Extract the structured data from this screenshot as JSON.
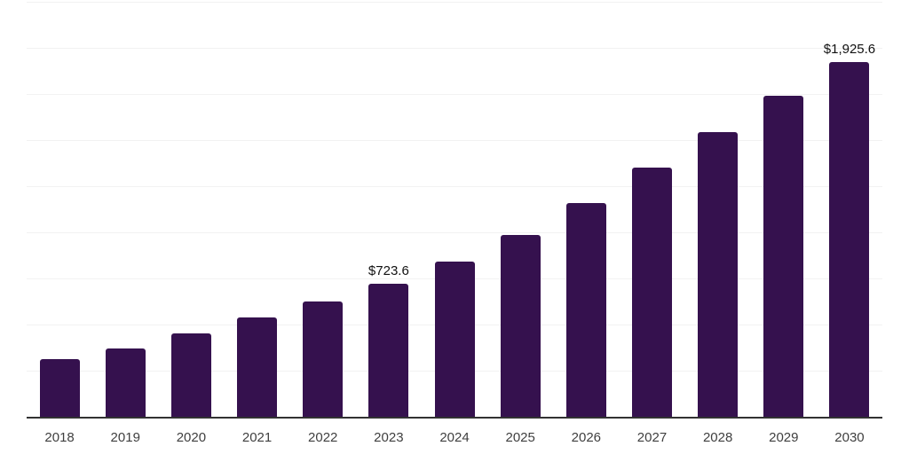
{
  "chart": {
    "background_color": "#ffffff",
    "bar_color": "#35114e",
    "grid_color": "#f2f2f2",
    "axis_color": "#323232",
    "tick_label_color": "#3f3f3f",
    "data_label_color": "#111111"
  },
  "chart_data": {
    "type": "bar",
    "title": "",
    "xlabel": "",
    "ylabel": "",
    "categories": [
      "2018",
      "2019",
      "2020",
      "2021",
      "2022",
      "2023",
      "2024",
      "2025",
      "2026",
      "2027",
      "2028",
      "2029",
      "2030"
    ],
    "values": [
      312,
      372,
      450,
      537,
      625,
      723.6,
      840,
      986,
      1157,
      1352,
      1545,
      1739,
      1925.6
    ],
    "data_labels": [
      "",
      "",
      "",
      "",
      "",
      "$723.6",
      "",
      "",
      "",
      "",
      "",
      "",
      "$1,925.6"
    ],
    "ylim": [
      0,
      2250
    ],
    "gridline_step": 250,
    "grid": true,
    "legend_position": "none"
  }
}
